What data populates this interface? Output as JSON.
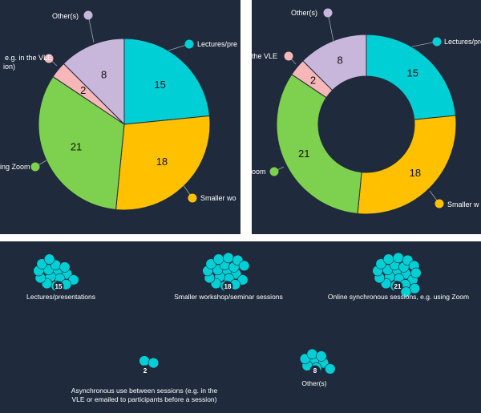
{
  "chart_data": [
    {
      "type": "pie",
      "categories": [
        "Lectures/presentations",
        "Smaller workshop/seminar sessions",
        "Online synchronous sessions, e.g. using Zoom",
        "Asynchronous use between sessions (e.g. in the VLE or emailed to participants before a session)",
        "Other(s)"
      ],
      "values": [
        15,
        18,
        21,
        2,
        8
      ],
      "colors": [
        "#00d0d6",
        "#ffc000",
        "#7ed14e",
        "#f7b7b8",
        "#c9b6db"
      ],
      "visible_labels": [
        "Lectures/pre",
        "Smaller wo",
        "ing Zoom",
        "e.g. in the VLE",
        "ion)",
        "Other(s)"
      ]
    },
    {
      "type": "donut",
      "categories": [
        "Lectures/presentations",
        "Smaller workshop/seminar sessions",
        "Online synchronous sessions, e.g. using Zoom",
        "Asynchronous use between sessions (e.g. in the VLE or emailed to participants before a session)",
        "Other(s)"
      ],
      "values": [
        15,
        18,
        21,
        2,
        8
      ],
      "colors": [
        "#00d0d6",
        "#ffc000",
        "#7ed14e",
        "#f7b7b8",
        "#c9b6db"
      ],
      "visible_labels": [
        "Lectures/pre",
        "Smaller w",
        "oom",
        "the VLE",
        "Other(s)"
      ]
    },
    {
      "type": "bubble-cluster",
      "color": "#00d0d6",
      "items": [
        {
          "label": "Lectures/presentations",
          "value": 15
        },
        {
          "label": "Smaller workshop/seminar sessions",
          "value": 18
        },
        {
          "label": "Online synchronous sessions, e.g. using Zoom",
          "value": 21
        },
        {
          "label": "Asynchronous use between sessions (e.g. in the VLE or emailed to participants before a session)",
          "label_lines": [
            "Asynchronous use between sessions (e.g. in the",
            "VLE or emailed to participants before a session)"
          ],
          "value": 2
        },
        {
          "label": "Other(s)",
          "value": 8
        }
      ]
    }
  ]
}
